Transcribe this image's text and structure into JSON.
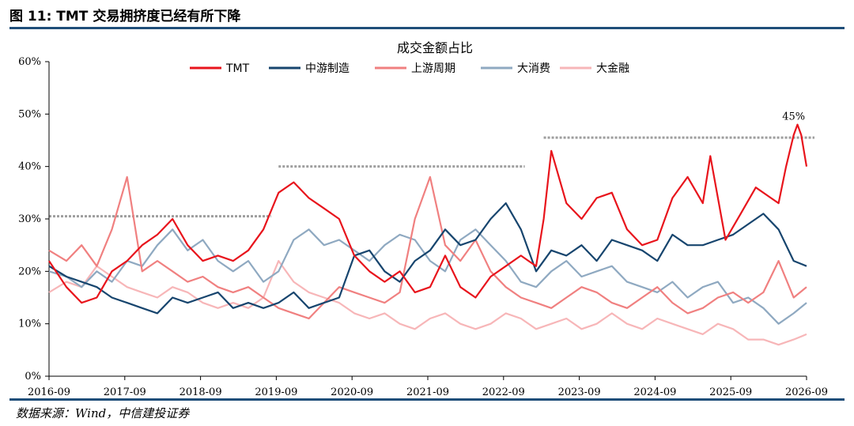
{
  "figure_title": "图 11: TMT 交易拥挤度已经有所下降",
  "source": "数据来源：Wind，中信建投证券",
  "chart_data": {
    "type": "line",
    "title": "成交金额占比",
    "ylim": [
      0,
      60
    ],
    "y_ticks": [
      "0%",
      "10%",
      "20%",
      "30%",
      "40%",
      "50%",
      "60%"
    ],
    "x_ticks": [
      "2016-09",
      "2017-09",
      "2018-09",
      "2019-09",
      "2020-09",
      "2021-09",
      "2022-09",
      "2023-09",
      "2024-09",
      "2025-09",
      "2026-09"
    ],
    "x_range": [
      2016.67,
      2026.67
    ],
    "legend_position": "top",
    "annotation": {
      "text": "45%",
      "x": 2026.5,
      "y": 45
    },
    "reference_lines": [
      {
        "x_start": 2016.67,
        "x_end": 2019.6,
        "y": 30.5
      },
      {
        "x_start": 2019.7,
        "x_end": 2022.95,
        "y": 40
      },
      {
        "x_start": 2023.2,
        "x_end": 2026.8,
        "y": 45.5
      }
    ],
    "series": [
      {
        "name": "TMT",
        "color": "#e8141c",
        "x": [
          2016.67,
          2016.9,
          2017.1,
          2017.3,
          2017.5,
          2017.7,
          2017.9,
          2018.1,
          2018.3,
          2018.5,
          2018.7,
          2018.9,
          2019.1,
          2019.3,
          2019.5,
          2019.7,
          2019.9,
          2020.1,
          2020.3,
          2020.5,
          2020.7,
          2020.9,
          2021.1,
          2021.3,
          2021.5,
          2021.7,
          2021.9,
          2022.1,
          2022.3,
          2022.5,
          2022.7,
          2022.9,
          2023.0,
          2023.1,
          2023.2,
          2023.3,
          2023.5,
          2023.7,
          2023.9,
          2024.1,
          2024.3,
          2024.5,
          2024.7,
          2024.9,
          2025.1,
          2025.3,
          2025.4,
          2025.6,
          2025.8,
          2026.0,
          2026.2,
          2026.3,
          2026.4,
          2026.5,
          2026.55,
          2026.6,
          2026.67
        ],
        "values": [
          22,
          17,
          14,
          15,
          20,
          22,
          25,
          27,
          30,
          25,
          22,
          23,
          22,
          24,
          28,
          35,
          37,
          34,
          32,
          30,
          23,
          20,
          18,
          20,
          16,
          17,
          23,
          17,
          15,
          19,
          21,
          23,
          22,
          21,
          30,
          43,
          33,
          30,
          34,
          35,
          28,
          25,
          26,
          34,
          38,
          33,
          42,
          26,
          31,
          36,
          34,
          33,
          40,
          46,
          48,
          46,
          40
        ]
      },
      {
        "name": "中游制造",
        "color": "#17456e",
        "x": [
          2016.67,
          2016.9,
          2017.1,
          2017.3,
          2017.5,
          2017.7,
          2017.9,
          2018.1,
          2018.3,
          2018.5,
          2018.7,
          2018.9,
          2019.1,
          2019.3,
          2019.5,
          2019.7,
          2019.9,
          2020.1,
          2020.3,
          2020.5,
          2020.7,
          2020.9,
          2021.1,
          2021.3,
          2021.5,
          2021.7,
          2021.9,
          2022.1,
          2022.3,
          2022.5,
          2022.7,
          2022.9,
          2023.1,
          2023.3,
          2023.5,
          2023.7,
          2023.9,
          2024.1,
          2024.3,
          2024.5,
          2024.7,
          2024.9,
          2025.1,
          2025.3,
          2025.5,
          2025.7,
          2025.9,
          2026.1,
          2026.3,
          2026.5,
          2026.67
        ],
        "values": [
          21,
          19,
          18,
          17,
          15,
          14,
          13,
          12,
          15,
          14,
          15,
          16,
          13,
          14,
          13,
          14,
          16,
          13,
          14,
          15,
          23,
          24,
          20,
          18,
          22,
          24,
          28,
          25,
          26,
          30,
          33,
          28,
          20,
          24,
          23,
          25,
          22,
          26,
          25,
          24,
          22,
          27,
          25,
          25,
          26,
          27,
          29,
          31,
          28,
          22,
          21
        ]
      },
      {
        "name": "上游周期",
        "color": "#f08080",
        "x": [
          2016.67,
          2016.9,
          2017.1,
          2017.3,
          2017.5,
          2017.7,
          2017.9,
          2018.1,
          2018.3,
          2018.5,
          2018.7,
          2018.9,
          2019.1,
          2019.3,
          2019.5,
          2019.7,
          2019.9,
          2020.1,
          2020.3,
          2020.5,
          2020.7,
          2020.9,
          2021.1,
          2021.3,
          2021.5,
          2021.7,
          2021.9,
          2022.1,
          2022.3,
          2022.5,
          2022.7,
          2022.9,
          2023.1,
          2023.3,
          2023.5,
          2023.7,
          2023.9,
          2024.1,
          2024.3,
          2024.5,
          2024.7,
          2024.9,
          2025.1,
          2025.3,
          2025.5,
          2025.7,
          2025.9,
          2026.1,
          2026.3,
          2026.5,
          2026.67
        ],
        "values": [
          24,
          22,
          25,
          21,
          28,
          38,
          20,
          22,
          20,
          18,
          19,
          17,
          16,
          17,
          15,
          13,
          12,
          11,
          14,
          17,
          16,
          15,
          14,
          16,
          30,
          38,
          25,
          22,
          26,
          20,
          17,
          15,
          14,
          13,
          15,
          17,
          16,
          14,
          13,
          15,
          17,
          14,
          12,
          13,
          15,
          16,
          14,
          16,
          22,
          15,
          17
        ]
      },
      {
        "name": "大消费",
        "color": "#8fa9c1",
        "x": [
          2016.67,
          2016.9,
          2017.1,
          2017.3,
          2017.5,
          2017.7,
          2017.9,
          2018.1,
          2018.3,
          2018.5,
          2018.7,
          2018.9,
          2019.1,
          2019.3,
          2019.5,
          2019.7,
          2019.9,
          2020.1,
          2020.3,
          2020.5,
          2020.7,
          2020.9,
          2021.1,
          2021.3,
          2021.5,
          2021.7,
          2021.9,
          2022.1,
          2022.3,
          2022.5,
          2022.7,
          2022.9,
          2023.1,
          2023.3,
          2023.5,
          2023.7,
          2023.9,
          2024.1,
          2024.3,
          2024.5,
          2024.7,
          2024.9,
          2025.1,
          2025.3,
          2025.5,
          2025.7,
          2025.9,
          2026.1,
          2026.3,
          2026.5,
          2026.67
        ],
        "values": [
          20,
          19,
          17,
          20,
          18,
          22,
          21,
          25,
          28,
          24,
          26,
          22,
          20,
          22,
          18,
          20,
          26,
          28,
          25,
          26,
          24,
          22,
          25,
          27,
          26,
          22,
          20,
          26,
          28,
          25,
          22,
          18,
          17,
          20,
          22,
          19,
          20,
          21,
          18,
          17,
          16,
          18,
          15,
          17,
          18,
          14,
          15,
          13,
          10,
          12,
          14
        ]
      },
      {
        "name": "大金融",
        "color": "#f7b6b8",
        "x": [
          2016.67,
          2016.9,
          2017.1,
          2017.3,
          2017.5,
          2017.7,
          2017.9,
          2018.1,
          2018.3,
          2018.5,
          2018.7,
          2018.9,
          2019.1,
          2019.3,
          2019.5,
          2019.7,
          2019.9,
          2020.1,
          2020.3,
          2020.5,
          2020.7,
          2020.9,
          2021.1,
          2021.3,
          2021.5,
          2021.7,
          2021.9,
          2022.1,
          2022.3,
          2022.5,
          2022.7,
          2022.9,
          2023.1,
          2023.3,
          2023.5,
          2023.7,
          2023.9,
          2024.1,
          2024.3,
          2024.5,
          2024.7,
          2024.9,
          2025.1,
          2025.3,
          2025.5,
          2025.7,
          2025.9,
          2026.1,
          2026.3,
          2026.5,
          2026.67
        ],
        "values": [
          16,
          18,
          17,
          21,
          19,
          17,
          16,
          15,
          17,
          16,
          14,
          13,
          14,
          13,
          15,
          22,
          18,
          16,
          15,
          14,
          12,
          11,
          12,
          10,
          9,
          11,
          12,
          10,
          9,
          10,
          12,
          11,
          9,
          10,
          11,
          9,
          10,
          12,
          10,
          9,
          11,
          10,
          9,
          8,
          10,
          9,
          7,
          7,
          6,
          7,
          8
        ]
      }
    ]
  }
}
